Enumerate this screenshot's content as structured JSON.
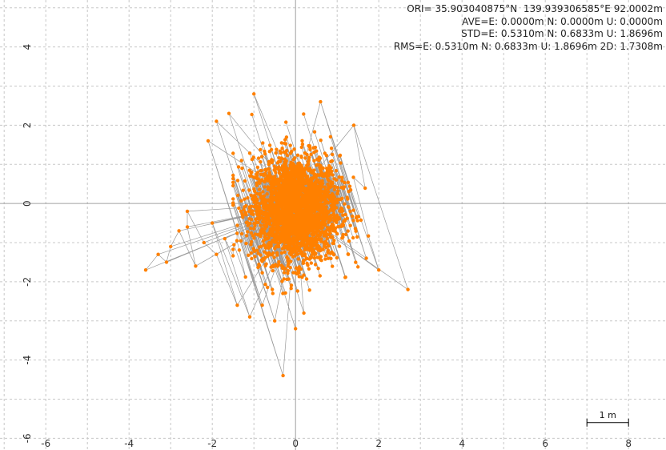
{
  "chart_data": {
    "type": "scatter",
    "title": "",
    "xlabel": "",
    "ylabel": "",
    "xlim": [
      -7.1,
      8.9
    ],
    "ylim": [
      -6.3,
      5.2
    ],
    "x_ticks": [
      "-6",
      "-4",
      "-2",
      "0",
      "2",
      "4",
      "6",
      "8"
    ],
    "y_ticks": [
      "4",
      "2",
      "0",
      "-2",
      "-4",
      "-6"
    ],
    "grid": true,
    "series": [
      {
        "marker_color": "#ff8000",
        "line_color": "#9a9a9a",
        "points_summary": "dense cluster of positions around origin, E spread about -1.5 to 1.9 m, N spread about -2.3 to 2.5 m, with sparse outliers to about (-3.6,-1.7) and (2.7,-2.2) and (-0.3,-4.4)"
      }
    ],
    "stats": {
      "ori": "ORI= 35.903040875°N  139.939306585°E 92.0002m",
      "ave": "AVE=E: 0.0000m N: 0.0000m U: 0.0000m",
      "std": "STD=E: 0.5310m N: 0.6833m U: 1.8696m",
      "rms": "RMS=E: 0.5310m N: 0.6833m U: 1.8696m 2D: 1.7308m"
    },
    "scale_bar": {
      "label": "1 m",
      "length_m": 1,
      "from_x": 7.0,
      "y": -5.6
    }
  }
}
